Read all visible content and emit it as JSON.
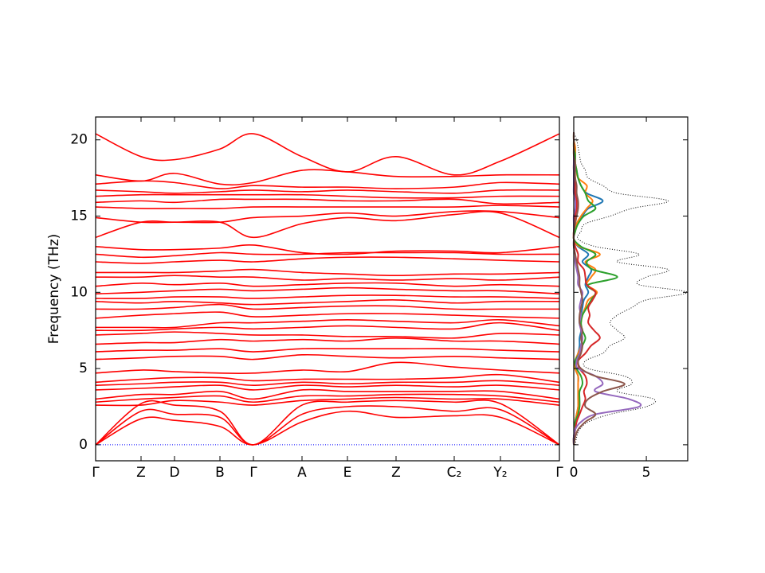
{
  "chart_data": [
    {
      "type": "bands",
      "ylabel": "Frequency (THz)",
      "color": "#ff0000",
      "x": [
        0,
        0.57,
        0.99,
        1.56,
        1.98,
        2.59,
        3.16,
        3.77,
        4.5,
        5.08,
        5.82
      ],
      "xlim": [
        0,
        5.82
      ],
      "xticks": [
        {
          "value": 0,
          "label": "Γ"
        },
        {
          "value": 0.57,
          "label": "Z"
        },
        {
          "value": 0.99,
          "label": "D"
        },
        {
          "value": 1.56,
          "label": "B"
        },
        {
          "value": 1.98,
          "label": "Γ"
        },
        {
          "value": 2.59,
          "label": "A"
        },
        {
          "value": 3.16,
          "label": "E"
        },
        {
          "value": 3.77,
          "label": "Z"
        },
        {
          "value": 4.5,
          "label": "C₂"
        },
        {
          "value": 5.08,
          "label": "Y₂"
        },
        {
          "value": 5.82,
          "label": "Γ"
        }
      ],
      "ylim": [
        -1.05,
        21.5
      ],
      "yticks": [
        0,
        5,
        10,
        15,
        20
      ],
      "reference_line": {
        "y": 0,
        "color": "#0000ff"
      },
      "series": [
        {
          "values": [
            0,
            1.7,
            1.6,
            1.2,
            0,
            1.5,
            2.2,
            1.8,
            1.9,
            1.8,
            0
          ]
        },
        {
          "values": [
            0,
            2.2,
            2.0,
            1.8,
            0,
            2.0,
            2.5,
            2.5,
            2.2,
            2.3,
            0
          ]
        },
        {
          "values": [
            0,
            2.7,
            2.6,
            2.2,
            0,
            2.6,
            2.8,
            2.9,
            2.8,
            2.7,
            0
          ]
        },
        {
          "values": [
            2.6,
            2.6,
            2.9,
            2.8,
            2.6,
            2.9,
            3.0,
            3.1,
            3.0,
            3.0,
            2.6
          ]
        },
        {
          "values": [
            2.8,
            3.0,
            3.1,
            3.2,
            2.8,
            3.2,
            3.2,
            3.3,
            3.3,
            3.2,
            2.8
          ]
        },
        {
          "values": [
            3.0,
            3.3,
            3.3,
            3.5,
            3.0,
            3.6,
            3.5,
            3.5,
            3.5,
            3.5,
            3.0
          ]
        },
        {
          "values": [
            3.6,
            3.7,
            3.8,
            3.9,
            3.6,
            3.9,
            3.8,
            3.9,
            3.8,
            3.9,
            3.6
          ]
        },
        {
          "values": [
            3.9,
            4.0,
            4.1,
            4.1,
            3.9,
            4.1,
            4.0,
            4.1,
            4.1,
            4.2,
            3.9
          ]
        },
        {
          "values": [
            4.1,
            4.3,
            4.4,
            4.4,
            4.2,
            4.3,
            4.3,
            4.3,
            4.4,
            4.6,
            4.1
          ]
        },
        {
          "values": [
            4.7,
            4.9,
            4.8,
            4.7,
            4.7,
            4.9,
            4.8,
            5.4,
            5.1,
            4.9,
            4.7
          ]
        },
        {
          "values": [
            5.6,
            5.7,
            5.8,
            5.8,
            5.6,
            5.9,
            5.8,
            5.7,
            5.8,
            5.7,
            5.6
          ]
        },
        {
          "values": [
            6.1,
            6.2,
            6.2,
            6.3,
            6.1,
            6.3,
            6.3,
            6.3,
            6.3,
            6.2,
            6.1
          ]
        },
        {
          "values": [
            6.6,
            6.7,
            6.7,
            6.9,
            6.8,
            6.9,
            6.8,
            7.0,
            6.8,
            6.8,
            6.6
          ]
        },
        {
          "values": [
            7.2,
            7.3,
            7.4,
            7.3,
            7.2,
            7.2,
            7.1,
            7.1,
            7.0,
            7.3,
            7.2
          ]
        },
        {
          "values": [
            7.5,
            7.5,
            7.6,
            7.7,
            7.6,
            7.7,
            7.8,
            7.7,
            7.6,
            8.0,
            7.5
          ]
        },
        {
          "values": [
            7.7,
            7.7,
            7.7,
            8.0,
            8.0,
            8.1,
            8.2,
            8.1,
            8.0,
            8.2,
            7.8
          ]
        },
        {
          "values": [
            8.3,
            8.5,
            8.6,
            8.7,
            8.4,
            8.5,
            8.6,
            8.6,
            8.5,
            8.4,
            8.3
          ]
        },
        {
          "values": [
            8.9,
            8.9,
            9.0,
            9.2,
            8.9,
            9.0,
            9.1,
            9.1,
            8.9,
            8.9,
            8.9
          ]
        },
        {
          "values": [
            9.4,
            9.3,
            9.4,
            9.3,
            9.2,
            9.3,
            9.4,
            9.5,
            9.3,
            9.4,
            9.4
          ]
        },
        {
          "values": [
            9.6,
            9.6,
            9.7,
            9.7,
            9.6,
            9.7,
            9.8,
            9.8,
            9.7,
            9.7,
            9.6
          ]
        },
        {
          "values": [
            9.9,
            10.0,
            10.1,
            10.2,
            10.1,
            10.2,
            10.3,
            10.2,
            10.1,
            10.1,
            9.9
          ]
        },
        {
          "values": [
            10.4,
            10.6,
            10.5,
            10.6,
            10.4,
            10.5,
            10.6,
            10.6,
            10.4,
            10.5,
            10.4
          ]
        },
        {
          "values": [
            11.0,
            11.0,
            11.1,
            11.0,
            11.0,
            10.8,
            10.9,
            10.8,
            10.9,
            10.8,
            11.0
          ]
        },
        {
          "values": [
            11.3,
            11.3,
            11.3,
            11.4,
            11.5,
            11.3,
            11.2,
            11.1,
            11.2,
            11.2,
            11.3
          ]
        },
        {
          "values": [
            12.0,
            11.9,
            12.0,
            12.1,
            12.0,
            12.2,
            12.3,
            12.3,
            12.2,
            12.1,
            12.0
          ]
        },
        {
          "values": [
            12.5,
            12.3,
            12.4,
            12.6,
            12.5,
            12.5,
            12.6,
            12.6,
            12.6,
            12.5,
            12.5
          ]
        },
        {
          "values": [
            13.0,
            12.8,
            12.8,
            12.9,
            13.1,
            12.6,
            12.5,
            12.7,
            12.7,
            12.6,
            13.0
          ]
        },
        {
          "values": [
            13.6,
            14.6,
            14.6,
            14.6,
            13.6,
            14.5,
            14.9,
            14.7,
            15.1,
            15.2,
            13.6
          ]
        },
        {
          "values": [
            14.9,
            14.6,
            14.6,
            14.6,
            14.9,
            15.0,
            15.2,
            15.0,
            15.3,
            15.3,
            14.9
          ]
        },
        {
          "values": [
            15.6,
            15.5,
            15.5,
            15.5,
            15.6,
            15.6,
            15.6,
            15.6,
            15.6,
            15.7,
            15.6
          ]
        },
        {
          "values": [
            15.9,
            16.0,
            15.9,
            16.1,
            16.1,
            16.1,
            16.0,
            16.0,
            16.1,
            15.8,
            15.9
          ]
        },
        {
          "values": [
            16.3,
            16.4,
            16.4,
            16.4,
            16.4,
            16.4,
            16.3,
            16.2,
            16.2,
            16.3,
            16.3
          ]
        },
        {
          "values": [
            16.7,
            16.6,
            16.5,
            16.6,
            16.7,
            16.6,
            16.7,
            16.6,
            16.5,
            16.7,
            16.7
          ]
        },
        {
          "values": [
            17.1,
            17.3,
            17.2,
            16.8,
            17.0,
            16.9,
            16.9,
            16.8,
            16.9,
            17.2,
            17.1
          ]
        },
        {
          "values": [
            17.7,
            17.3,
            17.8,
            17.1,
            17.2,
            18.0,
            17.9,
            17.6,
            17.6,
            17.7,
            17.7
          ]
        },
        {
          "values": [
            20.4,
            18.9,
            18.7,
            19.4,
            20.4,
            18.9,
            17.9,
            18.9,
            17.7,
            18.6,
            20.4
          ]
        }
      ]
    },
    {
      "type": "dos",
      "y": [
        0,
        0.5,
        1,
        1.5,
        2,
        2.5,
        3,
        3.5,
        4,
        4.5,
        5,
        5.5,
        6,
        6.5,
        7,
        7.5,
        8,
        8.5,
        9,
        9.5,
        10,
        10.5,
        11,
        11.5,
        12,
        12.5,
        13,
        13.5,
        14,
        14.5,
        15,
        15.5,
        16,
        16.5,
        17,
        17.5,
        18,
        18.5,
        19,
        19.5,
        20,
        20.5
      ],
      "xlim": [
        0,
        7.85
      ],
      "xticks": [
        0,
        5
      ],
      "ylim": [
        -1.05,
        21.5
      ],
      "yticks": [
        0,
        5,
        10,
        15,
        20
      ],
      "series": [
        {
          "color": "#000000",
          "style": "dotted",
          "values": [
            0.1,
            0.2,
            0.4,
            1.0,
            2.5,
            5.0,
            5.5,
            3.0,
            4.0,
            3.5,
            1.0,
            0.8,
            2.0,
            2.5,
            3.5,
            3.0,
            2.5,
            3.0,
            4.0,
            5.0,
            7.8,
            4.5,
            5.0,
            6.5,
            3.0,
            4.5,
            1.5,
            0.3,
            0.5,
            0.8,
            2.5,
            4.0,
            6.5,
            3.0,
            2.0,
            1.0,
            0.8,
            0.5,
            0.4,
            0.3,
            0.2,
            0.0
          ]
        },
        {
          "color": "#1f77b4",
          "style": "solid",
          "values": [
            0,
            0,
            0.1,
            0.1,
            0.2,
            0.3,
            0.3,
            0.3,
            0.3,
            0.3,
            0.1,
            0.1,
            0.3,
            0.4,
            0.4,
            0.5,
            0.4,
            0.5,
            0.6,
            0.7,
            1.0,
            0.8,
            1.0,
            1.2,
            0.6,
            1.0,
            0.3,
            0,
            0.1,
            0.2,
            0.6,
            1.0,
            2.0,
            0.9,
            0.5,
            0.3,
            0.2,
            0.1,
            0.1,
            0.1,
            0,
            0
          ]
        },
        {
          "color": "#ff7f0e",
          "style": "solid",
          "values": [
            0,
            0,
            0.1,
            0.1,
            0.2,
            0.3,
            0.3,
            0.3,
            0.3,
            0.3,
            0.1,
            0.1,
            0.3,
            0.5,
            0.6,
            0.5,
            0.5,
            0.6,
            0.8,
            1.0,
            1.6,
            0.9,
            1.2,
            1.5,
            0.8,
            1.8,
            0.4,
            0,
            0.1,
            0.2,
            0.5,
            0.9,
            1.3,
            0.8,
            0.9,
            0.3,
            0.2,
            0.1,
            0.1,
            0.1,
            0,
            0
          ]
        },
        {
          "color": "#2ca02c",
          "style": "solid",
          "values": [
            0,
            0,
            0.1,
            0.1,
            0.3,
            0.4,
            0.4,
            0.4,
            0.6,
            0.5,
            0.2,
            0.1,
            0.4,
            0.6,
            0.8,
            0.6,
            0.5,
            0.6,
            0.9,
            1.2,
            1.5,
            1.0,
            3.0,
            1.3,
            0.9,
            1.5,
            0.5,
            0,
            0.1,
            0.3,
            0.7,
            1.5,
            1.0,
            0.8,
            0.5,
            0.3,
            0.2,
            0.1,
            0.1,
            0,
            0,
            0
          ]
        },
        {
          "color": "#d62728",
          "style": "solid",
          "values": [
            0,
            0,
            0.1,
            0.2,
            0.4,
            0.6,
            0.8,
            0.7,
            0.9,
            0.8,
            0.4,
            0.3,
            0.8,
            1.2,
            1.8,
            1.4,
            1.0,
            1.1,
            1.0,
            1.3,
            1.5,
            0.9,
            0.8,
            0.7,
            0.3,
            0.3,
            0.1,
            0,
            0,
            0.1,
            0.1,
            0.2,
            0.2,
            0.1,
            0.1,
            0.1,
            0,
            0,
            0,
            0,
            0,
            0
          ]
        },
        {
          "color": "#9467bd",
          "style": "solid",
          "values": [
            0,
            0,
            0.1,
            0.5,
            1.5,
            4.5,
            3.8,
            1.5,
            2.0,
            1.5,
            0.3,
            0.2,
            0.4,
            0.5,
            0.6,
            0.5,
            0.4,
            0.5,
            0.4,
            0.5,
            0.6,
            0.3,
            0.3,
            0.2,
            0.1,
            0.1,
            0,
            0,
            0,
            0,
            0,
            0.1,
            0.1,
            0,
            0,
            0,
            0,
            0,
            0,
            0,
            0,
            0
          ]
        },
        {
          "color": "#8c564b",
          "style": "solid",
          "values": [
            0,
            0.1,
            0.3,
            0.8,
            1.5,
            0.8,
            1.0,
            2.0,
            3.5,
            1.5,
            0.5,
            0.3,
            0.5,
            0.6,
            0.5,
            0.6,
            0.4,
            0.4,
            0.5,
            0.6,
            0.5,
            0.4,
            0.4,
            0.3,
            0.2,
            0.1,
            0,
            0,
            0,
            0.1,
            0.2,
            0.3,
            0.3,
            0.2,
            0.2,
            0.1,
            0.1,
            0.1,
            0,
            0,
            0,
            0
          ]
        }
      ]
    }
  ]
}
